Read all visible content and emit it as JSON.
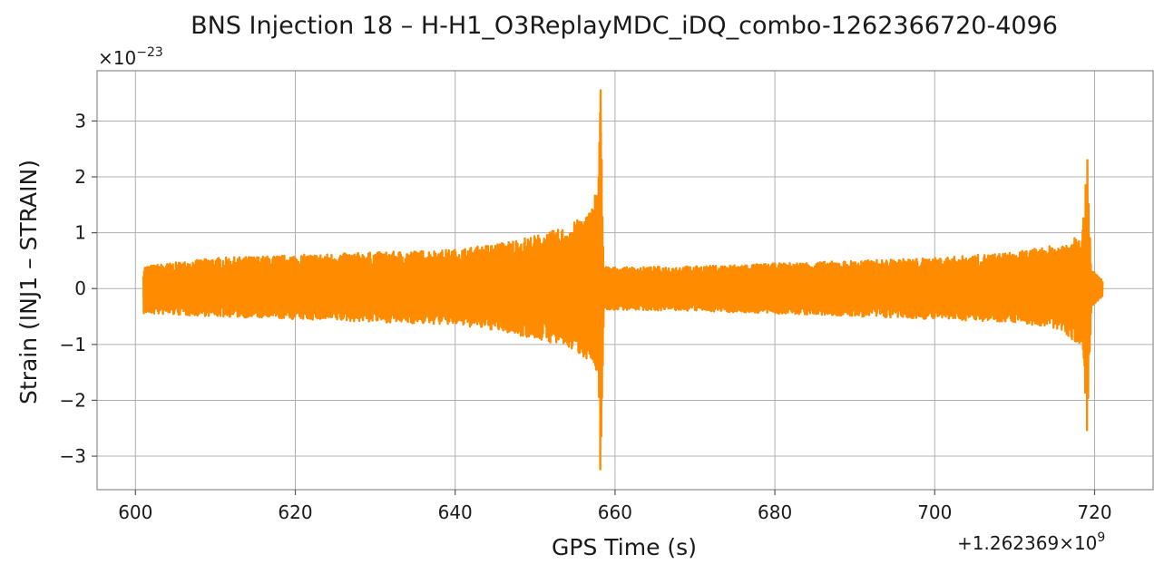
{
  "chart_data": {
    "type": "line",
    "title": "BNS Injection 18 – H-H1_O3ReplayMDC_iDQ_combo-1262366720-4096",
    "xlabel": "GPS Time (s)",
    "ylabel": "Strain (INJ1 – STRAIN)",
    "x_offset_label": "+1.262369×10",
    "x_offset_exponent": "9",
    "y_scale_label": "×10",
    "y_scale_exponent": "−23",
    "xlim": [
      595,
      1727
    ],
    "ylim": [
      -3.6,
      3.9
    ],
    "x_ticks": [
      600,
      620,
      640,
      660,
      680,
      700,
      720
    ],
    "x_tick_labels": [
      "600",
      "620",
      "640",
      "660",
      "680",
      "700",
      "720"
    ],
    "y_ticks": [
      -3,
      -2,
      -1,
      0,
      1,
      2,
      3
    ],
    "y_tick_labels": [
      "−3",
      "−2",
      "−1",
      "0",
      "1",
      "2",
      "3"
    ],
    "grid": true,
    "color": "#ff8c00",
    "series": [
      {
        "x_range": [
          601,
          721
        ],
        "envelope": [
          {
            "x": 601.0,
            "lo": -0.45,
            "hi": 0.4
          },
          {
            "x": 610.0,
            "lo": -0.5,
            "hi": 0.55
          },
          {
            "x": 620.0,
            "lo": -0.55,
            "hi": 0.6
          },
          {
            "x": 630.0,
            "lo": -0.6,
            "hi": 0.65
          },
          {
            "x": 640.0,
            "lo": -0.65,
            "hi": 0.7
          },
          {
            "x": 645.0,
            "lo": -0.75,
            "hi": 0.8
          },
          {
            "x": 650.0,
            "lo": -0.9,
            "hi": 0.95
          },
          {
            "x": 654.0,
            "lo": -1.05,
            "hi": 1.1
          },
          {
            "x": 657.0,
            "lo": -1.3,
            "hi": 1.4
          },
          {
            "x": 657.9,
            "lo": -1.8,
            "hi": 2.0
          },
          {
            "x": 658.2,
            "lo": -3.25,
            "hi": 3.55
          },
          {
            "x": 658.6,
            "lo": -0.4,
            "hi": 0.4
          },
          {
            "x": 660.0,
            "lo": -0.38,
            "hi": 0.38
          },
          {
            "x": 670.0,
            "lo": -0.4,
            "hi": 0.4
          },
          {
            "x": 680.0,
            "lo": -0.45,
            "hi": 0.45
          },
          {
            "x": 690.0,
            "lo": -0.5,
            "hi": 0.5
          },
          {
            "x": 700.0,
            "lo": -0.55,
            "hi": 0.55
          },
          {
            "x": 710.0,
            "lo": -0.6,
            "hi": 0.65
          },
          {
            "x": 716.0,
            "lo": -0.75,
            "hi": 0.8
          },
          {
            "x": 718.5,
            "lo": -1.1,
            "hi": 1.1
          },
          {
            "x": 719.1,
            "lo": -2.55,
            "hi": 2.3
          },
          {
            "x": 719.6,
            "lo": -0.35,
            "hi": 0.35
          },
          {
            "x": 721.0,
            "lo": -0.15,
            "hi": 0.15
          }
        ]
      }
    ]
  }
}
